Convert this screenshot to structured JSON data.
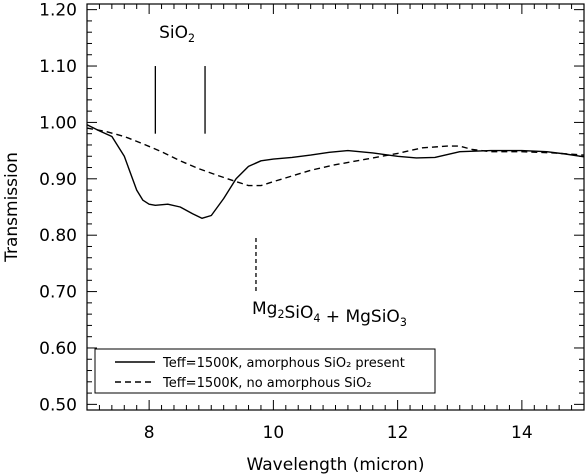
{
  "chart_data": {
    "type": "line",
    "xlabel": "Wavelength (micron)",
    "ylabel": "Transmission",
    "xlim": [
      7.0,
      15.0
    ],
    "ylim": [
      0.49,
      1.21
    ],
    "xticks": [
      8,
      10,
      12,
      14
    ],
    "xtick_labels": [
      "8",
      "10",
      "12",
      "14"
    ],
    "yticks": [
      0.5,
      0.6,
      0.7,
      0.8,
      0.9,
      1.0,
      1.1,
      1.2
    ],
    "ytick_labels": [
      "0.50",
      "0.60",
      "0.70",
      "0.80",
      "0.90",
      "1.00",
      "1.10",
      "1.20"
    ],
    "grid": false,
    "legend_position": "bottom-left",
    "series": [
      {
        "name": "Teff=1500K, amorphous SiO₂ present",
        "style": "solid",
        "x": [
          7.0,
          7.2,
          7.4,
          7.6,
          7.7,
          7.8,
          7.9,
          8.0,
          8.1,
          8.3,
          8.5,
          8.7,
          8.85,
          9.0,
          9.2,
          9.4,
          9.6,
          9.8,
          10.0,
          10.3,
          10.6,
          10.9,
          11.2,
          11.6,
          12.0,
          12.3,
          12.6,
          13.0,
          13.5,
          14.0,
          14.4,
          14.7,
          15.0
        ],
        "y": [
          0.996,
          0.985,
          0.975,
          0.94,
          0.91,
          0.88,
          0.862,
          0.855,
          0.853,
          0.855,
          0.85,
          0.838,
          0.83,
          0.835,
          0.865,
          0.9,
          0.922,
          0.932,
          0.935,
          0.938,
          0.942,
          0.947,
          0.95,
          0.946,
          0.94,
          0.937,
          0.938,
          0.948,
          0.95,
          0.95,
          0.948,
          0.944,
          0.939
        ]
      },
      {
        "name": "Teff=1500K, no amorphous SiO₂",
        "style": "dashed",
        "x": [
          7.0,
          7.3,
          7.6,
          7.9,
          8.2,
          8.5,
          8.8,
          9.1,
          9.4,
          9.6,
          9.8,
          10.0,
          10.3,
          10.6,
          11.0,
          11.5,
          12.0,
          12.4,
          12.8,
          13.0,
          13.2,
          13.5,
          14.0,
          14.5,
          15.0
        ],
        "y": [
          0.99,
          0.984,
          0.975,
          0.962,
          0.948,
          0.932,
          0.918,
          0.906,
          0.895,
          0.888,
          0.888,
          0.895,
          0.905,
          0.915,
          0.925,
          0.935,
          0.945,
          0.955,
          0.958,
          0.958,
          0.952,
          0.948,
          0.948,
          0.946,
          0.942
        ]
      }
    ],
    "annotations": {
      "sio2_label": {
        "parts": [
          {
            "text": "SiO",
            "sub": false
          },
          {
            "text": "2",
            "sub": true
          }
        ],
        "x": 8.45,
        "y": 1.15
      },
      "sio2_markers": [
        {
          "x": 8.1,
          "y_from": 1.1,
          "y_to": 0.98,
          "style": "solid"
        },
        {
          "x": 8.9,
          "y_from": 1.1,
          "y_to": 0.98,
          "style": "solid"
        }
      ],
      "mg_marker": {
        "x": 9.72,
        "y_from": 0.795,
        "y_to": 0.7,
        "style": "dashed"
      },
      "mg_label": {
        "parts": [
          {
            "text": "Mg",
            "sub": false
          },
          {
            "text": "2",
            "sub": true
          },
          {
            "text": "SiO",
            "sub": false
          },
          {
            "text": "4",
            "sub": true
          },
          {
            "text": " + MgSiO",
            "sub": false
          },
          {
            "text": "3",
            "sub": true
          }
        ],
        "x": 9.72,
        "y": 0.66
      }
    }
  }
}
